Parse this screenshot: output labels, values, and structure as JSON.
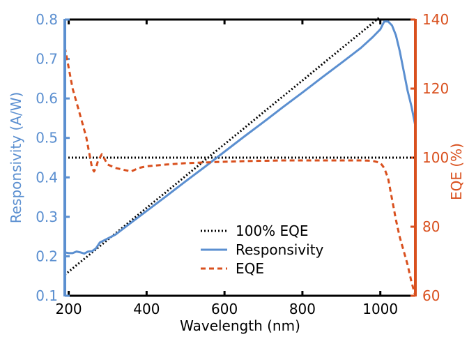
{
  "chart_data": {
    "type": "line",
    "xlabel": "Wavelength (nm)",
    "ylabel_left": "Responsivity (A/W)",
    "ylabel_right": "EQE (%)",
    "xlim": [
      190,
      1090
    ],
    "ylim_left": [
      0.1,
      0.8
    ],
    "ylim_right": [
      60,
      140
    ],
    "x_ticks": [
      200,
      400,
      600,
      800,
      1000
    ],
    "y_left_ticks": [
      0.1,
      0.2,
      0.3,
      0.4,
      0.5,
      0.6,
      0.7,
      0.8
    ],
    "y_right_ticks": [
      60,
      80,
      100,
      120,
      140
    ],
    "grid": false,
    "legend_placement": "bottom-center",
    "colors": {
      "left_axis": "#5b8fd0",
      "right_axis": "#d9501e",
      "responsivity": "#5b8fd0",
      "eqe": "#d9501e",
      "ideal": "#000000"
    },
    "series": [
      {
        "name": "100% EQE",
        "axis": "left",
        "style": "dotted",
        "x": [
          190,
          1000
        ],
        "y": [
          0.153,
          0.807
        ]
      },
      {
        "name": "Responsivity",
        "axis": "left",
        "style": "solid",
        "x": [
          190,
          200,
          210,
          220,
          230,
          240,
          250,
          260,
          270,
          280,
          290,
          300,
          320,
          340,
          360,
          400,
          450,
          500,
          550,
          600,
          650,
          700,
          750,
          800,
          850,
          900,
          950,
          980,
          1000,
          1010,
          1020,
          1030,
          1040,
          1050,
          1060,
          1070,
          1080,
          1090
        ],
        "y": [
          0.21,
          0.208,
          0.208,
          0.212,
          0.21,
          0.207,
          0.212,
          0.213,
          0.22,
          0.235,
          0.24,
          0.245,
          0.255,
          0.27,
          0.285,
          0.315,
          0.352,
          0.39,
          0.427,
          0.465,
          0.503,
          0.54,
          0.578,
          0.615,
          0.653,
          0.69,
          0.728,
          0.755,
          0.775,
          0.795,
          0.795,
          0.785,
          0.76,
          0.72,
          0.67,
          0.62,
          0.58,
          0.53
        ]
      },
      {
        "name": "EQE",
        "axis": "right",
        "style": "dashed",
        "x": [
          190,
          195,
          200,
          205,
          210,
          215,
          220,
          225,
          230,
          235,
          240,
          245,
          250,
          255,
          260,
          265,
          270,
          275,
          280,
          285,
          290,
          300,
          320,
          340,
          360,
          380,
          400,
          450,
          500,
          550,
          600,
          650,
          700,
          750,
          800,
          850,
          900,
          950,
          980,
          1000,
          1010,
          1020,
          1030,
          1040,
          1050,
          1060,
          1070,
          1080,
          1090
        ],
        "y": [
          132,
          129,
          126,
          123,
          120,
          118,
          116,
          114,
          112,
          110,
          108,
          106,
          103,
          100,
          97,
          96,
          97,
          99,
          100,
          101,
          100,
          98,
          97,
          96.5,
          96,
          97,
          97.5,
          98,
          98.4,
          98.6,
          98.8,
          99,
          99.1,
          99.2,
          99.2,
          99.2,
          99.2,
          99.2,
          99.1,
          98.5,
          97,
          94,
          88,
          82,
          77,
          73,
          69,
          64,
          60
        ]
      }
    ]
  }
}
